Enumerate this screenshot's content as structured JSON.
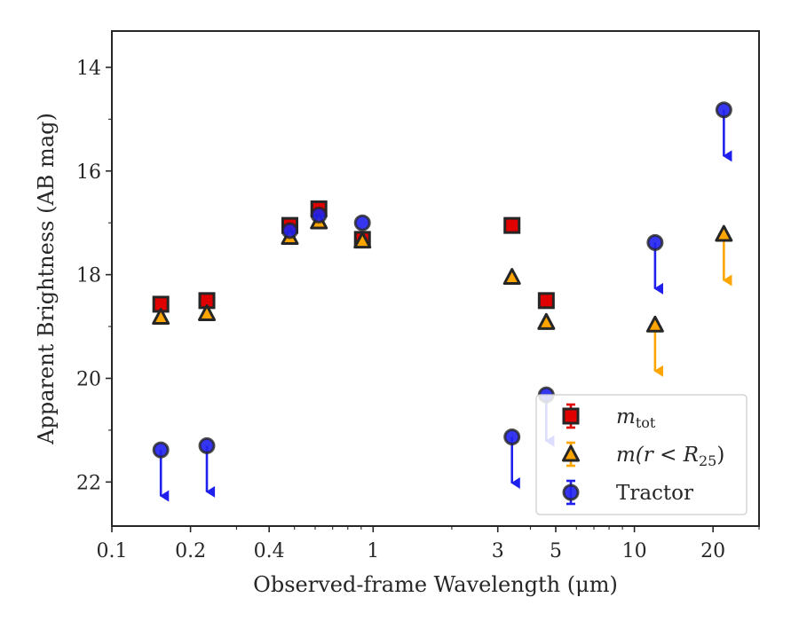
{
  "chart_data": {
    "type": "scatter",
    "xscale": "log",
    "xlim": [
      0.1,
      30
    ],
    "ylim": [
      22.85,
      13.3
    ],
    "y_inverted": true,
    "grid": false,
    "legend_position": "lower-right",
    "xlabel": "Observed-frame Wavelength (μm)",
    "ylabel": "Apparent Brightness (AB mag)",
    "x_ticks": [
      {
        "value": 0.1,
        "label": "0.1"
      },
      {
        "value": 0.2,
        "label": "0.2"
      },
      {
        "value": 0.4,
        "label": "0.4"
      },
      {
        "value": 1,
        "label": "1"
      },
      {
        "value": 3,
        "label": "3"
      },
      {
        "value": 5,
        "label": "5"
      },
      {
        "value": 10,
        "label": "10"
      },
      {
        "value": 20,
        "label": "20"
      }
    ],
    "y_ticks": [
      {
        "value": 14,
        "label": "14"
      },
      {
        "value": 16,
        "label": "16"
      },
      {
        "value": 18,
        "label": "18"
      },
      {
        "value": 20,
        "label": "20"
      },
      {
        "value": 22,
        "label": "22"
      }
    ],
    "series": [
      {
        "key": "mtot",
        "marker": "square",
        "color": "#e00000",
        "edge_color": "#262626",
        "points": [
          {
            "x": 0.154,
            "y": 18.57
          },
          {
            "x": 0.231,
            "y": 18.5
          },
          {
            "x": 0.48,
            "y": 17.05
          },
          {
            "x": 0.62,
            "y": 16.73
          },
          {
            "x": 0.91,
            "y": 17.32
          },
          {
            "x": 3.4,
            "y": 17.05
          },
          {
            "x": 4.6,
            "y": 18.5
          }
        ]
      },
      {
        "key": "mr25",
        "marker": "triangle",
        "color": "#ffa500",
        "edge_color": "#262626",
        "points": [
          {
            "x": 0.154,
            "y": 18.82,
            "upper_limit": false
          },
          {
            "x": 0.231,
            "y": 18.75,
            "upper_limit": false
          },
          {
            "x": 0.48,
            "y": 17.28,
            "upper_limit": false
          },
          {
            "x": 0.62,
            "y": 16.98,
            "upper_limit": false
          },
          {
            "x": 0.91,
            "y": 17.35,
            "upper_limit": false
          },
          {
            "x": 3.4,
            "y": 18.05,
            "upper_limit": false
          },
          {
            "x": 4.6,
            "y": 18.92,
            "upper_limit": false
          },
          {
            "x": 12.0,
            "y": 18.97,
            "upper_limit": true
          },
          {
            "x": 22.0,
            "y": 17.22,
            "upper_limit": true
          }
        ]
      },
      {
        "key": "tractor",
        "marker": "circle",
        "color": "#2020ee",
        "edge_color": "#262626",
        "points": [
          {
            "x": 0.154,
            "y": 21.38,
            "upper_limit": true
          },
          {
            "x": 0.231,
            "y": 21.3,
            "upper_limit": true
          },
          {
            "x": 0.48,
            "y": 17.15,
            "upper_limit": false
          },
          {
            "x": 0.62,
            "y": 16.85,
            "upper_limit": false
          },
          {
            "x": 0.91,
            "y": 17.0,
            "upper_limit": false
          },
          {
            "x": 3.4,
            "y": 21.13,
            "upper_limit": true
          },
          {
            "x": 4.6,
            "y": 20.32,
            "upper_limit": true
          },
          {
            "x": 12.0,
            "y": 17.38,
            "upper_limit": true
          },
          {
            "x": 22.0,
            "y": 14.82,
            "upper_limit": true
          }
        ]
      }
    ],
    "legend": [
      {
        "series": "mtot",
        "marker": "square",
        "color": "#e00000",
        "label_base": "m",
        "label_sub": "tot"
      },
      {
        "series": "mr25",
        "marker": "triangle",
        "color": "#ffa500",
        "label_pre": "m(r < R",
        "label_sub": "25",
        "label_post": ")"
      },
      {
        "series": "tractor",
        "marker": "circle",
        "color": "#2020ee",
        "label": "Tractor"
      }
    ]
  }
}
